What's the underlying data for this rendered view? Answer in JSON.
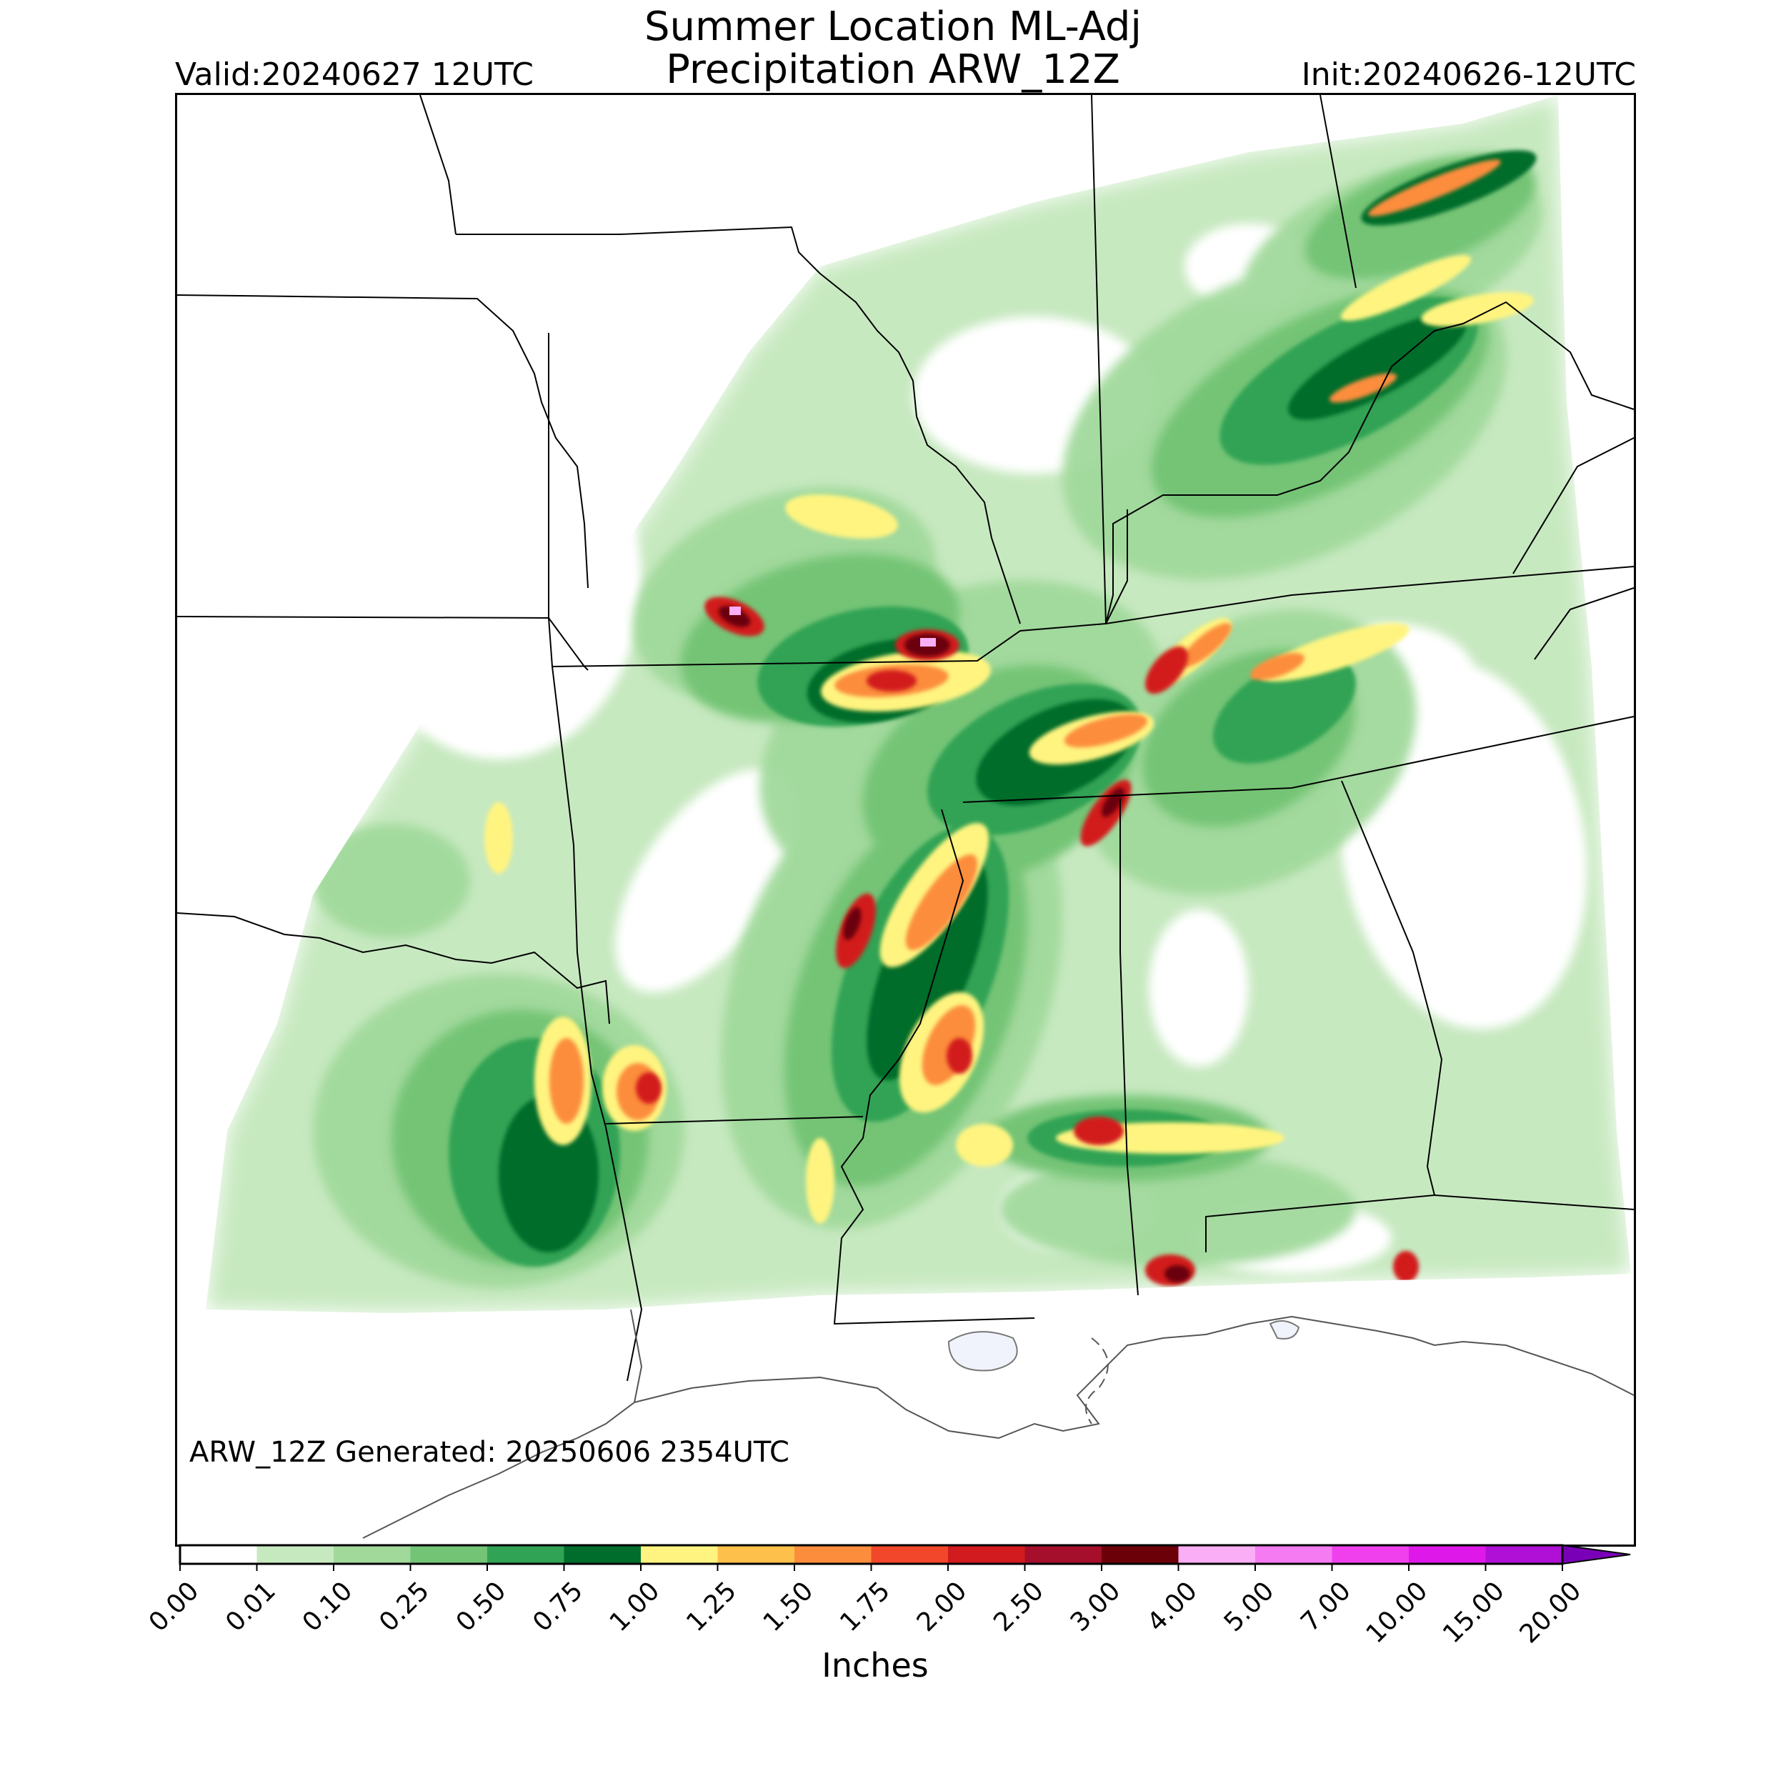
{
  "title": {
    "line1": "Summer Location ML-Adj",
    "line2": "Precipitation ARW_12Z"
  },
  "valid_time": "Valid:20240627 12UTC",
  "init_time": "Init:20240626-12UTC",
  "generated_note": "ARW_12Z Generated: 20250606 2354UTC",
  "colorbar": {
    "unit_label": "Inches",
    "extend": "max",
    "ticks": [
      "0.00",
      "0.01",
      "0.10",
      "0.25",
      "0.50",
      "0.75",
      "1.00",
      "1.25",
      "1.50",
      "1.75",
      "2.00",
      "2.50",
      "3.00",
      "4.00",
      "5.00",
      "7.00",
      "10.00",
      "15.00",
      "20.00"
    ],
    "colors": [
      "#ffffff",
      "#c7e9c0",
      "#a1d99b",
      "#74c476",
      "#31a354",
      "#006d2c",
      "#fff480",
      "#fdc14b",
      "#fc8d3c",
      "#f2472a",
      "#d21b1e",
      "#a50f2b",
      "#6b0008",
      "#f9aef6",
      "#f57bf2",
      "#f040ee",
      "#de18e8",
      "#b010d6",
      "#7a00b8"
    ]
  },
  "map": {
    "land_color": "#ffffff",
    "water_color": "#f0f3fb",
    "boundary_color": "#000000",
    "coast_color": "#555555"
  }
}
